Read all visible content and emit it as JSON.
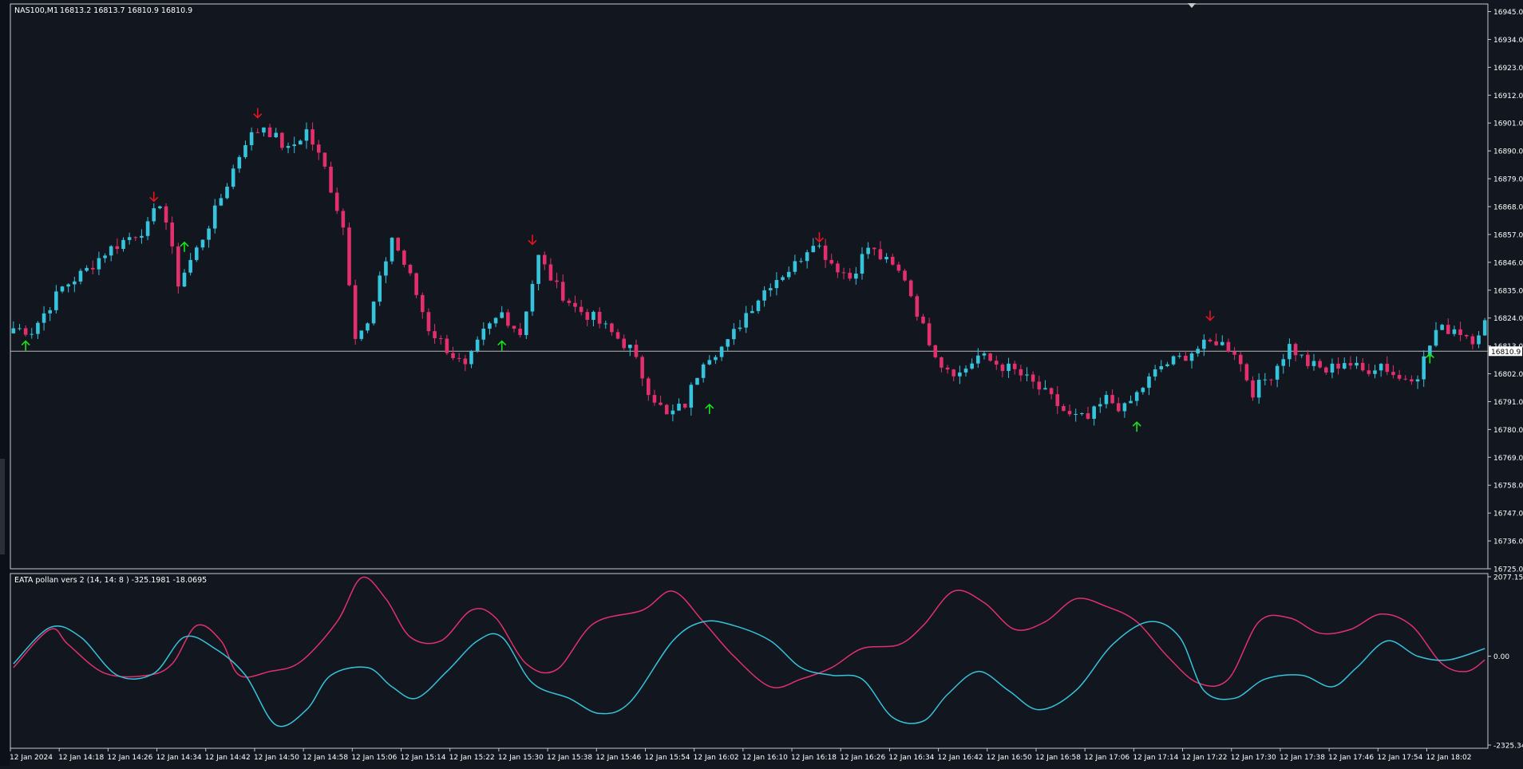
{
  "header": {
    "symbol": "NAS100,M1",
    "ohlc": "16813.2 16813.7 16810.9 16810.9"
  },
  "colors": {
    "background": "#11161f",
    "frame": "#c8c8c8",
    "bull": "#36c3dc",
    "bear": "#e3306d",
    "buy_arrow": "#18e418",
    "sell_arrow": "#e8141e",
    "bid_line": "#b8b8b8",
    "text": "#ffffff"
  },
  "indicator": {
    "label": "EATA pollan vers 2 (14, 14: 8 ) -325.1981 -18.0695",
    "ticks": [
      "2077.1513",
      "0.00",
      "-2325.3458"
    ]
  },
  "price_ticks": [
    "16945.0",
    "16934.0",
    "16923.0",
    "16912.0",
    "16901.0",
    "16890.0",
    "16879.0",
    "16868.0",
    "16857.0",
    "16846.0",
    "16835.0",
    "16824.0",
    "16813.0",
    "16802.0",
    "16791.0",
    "16780.0",
    "16769.0",
    "16758.0",
    "16747.0",
    "16736.0",
    "16725.0"
  ],
  "current_price": "16810.9",
  "time_labels": [
    "12 Jan 2024",
    "12 Jan 14:18",
    "12 Jan 14:26",
    "12 Jan 14:34",
    "12 Jan 14:42",
    "12 Jan 14:50",
    "12 Jan 14:58",
    "12 Jan 15:06",
    "12 Jan 15:14",
    "12 Jan 15:22",
    "12 Jan 15:30",
    "12 Jan 15:38",
    "12 Jan 15:46",
    "12 Jan 15:54",
    "12 Jan 16:02",
    "12 Jan 16:10",
    "12 Jan 16:18",
    "12 Jan 16:26",
    "12 Jan 16:34",
    "12 Jan 16:42",
    "12 Jan 16:50",
    "12 Jan 16:58",
    "12 Jan 17:06",
    "12 Jan 17:14",
    "12 Jan 17:22",
    "12 Jan 17:30",
    "12 Jan 17:38",
    "12 Jan 17:46",
    "12 Jan 17:54",
    "12 Jan 18:02"
  ],
  "chart_data": [
    {
      "type": "candlestick",
      "symbol": "NAS100",
      "timeframe": "M1",
      "ylim": [
        16725,
        16948
      ],
      "anchors": [
        [
          0,
          16820
        ],
        [
          3,
          16819
        ],
        [
          8,
          16836
        ],
        [
          12,
          16843
        ],
        [
          15,
          16850
        ],
        [
          19,
          16856
        ],
        [
          22,
          16860
        ],
        [
          24,
          16870
        ],
        [
          25,
          16862
        ],
        [
          27,
          16838
        ],
        [
          30,
          16851
        ],
        [
          33,
          16866
        ],
        [
          38,
          16894
        ],
        [
          41,
          16900
        ],
        [
          45,
          16890
        ],
        [
          48,
          16898
        ],
        [
          51,
          16883
        ],
        [
          54,
          16860
        ],
        [
          56,
          16818
        ],
        [
          58,
          16821
        ],
        [
          62,
          16856
        ],
        [
          65,
          16840
        ],
        [
          68,
          16820
        ],
        [
          71,
          16812
        ],
        [
          74,
          16804
        ],
        [
          77,
          16818
        ],
        [
          80,
          16826
        ],
        [
          83,
          16818
        ],
        [
          86,
          16848
        ],
        [
          89,
          16836
        ],
        [
          92,
          16828
        ],
        [
          95,
          16824
        ],
        [
          98,
          16818
        ],
        [
          101,
          16812
        ],
        [
          104,
          16796
        ],
        [
          107,
          16785
        ],
        [
          110,
          16790
        ],
        [
          113,
          16808
        ],
        [
          117,
          16814
        ],
        [
          120,
          16826
        ],
        [
          124,
          16838
        ],
        [
          128,
          16845
        ],
        [
          131,
          16855
        ],
        [
          134,
          16846
        ],
        [
          137,
          16840
        ],
        [
          140,
          16852
        ],
        [
          143,
          16846
        ],
        [
          146,
          16840
        ],
        [
          149,
          16820
        ],
        [
          152,
          16806
        ],
        [
          155,
          16802
        ],
        [
          158,
          16809
        ],
        [
          161,
          16806
        ],
        [
          164,
          16803
        ],
        [
          167,
          16798
        ],
        [
          170,
          16792
        ],
        [
          173,
          16785
        ],
        [
          176,
          16784
        ],
        [
          179,
          16792
        ],
        [
          182,
          16788
        ],
        [
          185,
          16797
        ],
        [
          188,
          16805
        ],
        [
          191,
          16808
        ],
        [
          194,
          16812
        ],
        [
          197,
          16815
        ],
        [
          200,
          16811
        ],
        [
          203,
          16795
        ],
        [
          206,
          16802
        ],
        [
          209,
          16813
        ],
        [
          212,
          16806
        ],
        [
          215,
          16803
        ],
        [
          218,
          16807
        ],
        [
          221,
          16803
        ],
        [
          224,
          16806
        ],
        [
          227,
          16800
        ],
        [
          230,
          16802
        ],
        [
          233,
          16819
        ],
        [
          236,
          16820
        ],
        [
          239,
          16816
        ],
        [
          241,
          16822
        ]
      ],
      "arrows": [
        {
          "bar": 2,
          "dir": "up",
          "price": 16813
        },
        {
          "bar": 23,
          "dir": "down",
          "price": 16872
        },
        {
          "bar": 28,
          "dir": "up",
          "price": 16852
        },
        {
          "bar": 40,
          "dir": "down",
          "price": 16905
        },
        {
          "bar": 80,
          "dir": "up",
          "price": 16813
        },
        {
          "bar": 85,
          "dir": "down",
          "price": 16855
        },
        {
          "bar": 114,
          "dir": "up",
          "price": 16788
        },
        {
          "bar": 132,
          "dir": "down",
          "price": 16856
        },
        {
          "bar": 184,
          "dir": "up",
          "price": 16781
        },
        {
          "bar": 196,
          "dir": "down",
          "price": 16825
        },
        {
          "bar": 232,
          "dir": "up",
          "price": 16808
        }
      ]
    },
    {
      "type": "line",
      "ylim": [
        -2325.3458,
        2077.1513
      ],
      "series": [
        {
          "color": "#e3306d",
          "points": [
            [
              0,
              -300
            ],
            [
              6,
              700
            ],
            [
              9,
              300
            ],
            [
              15,
              -450
            ],
            [
              22,
              -500
            ],
            [
              26,
              -200
            ],
            [
              30,
              800
            ],
            [
              34,
              400
            ],
            [
              37,
              -500
            ],
            [
              42,
              -400
            ],
            [
              47,
              -150
            ],
            [
              53,
              900
            ],
            [
              57,
              2050
            ],
            [
              61,
              1500
            ],
            [
              65,
              500
            ],
            [
              70,
              400
            ],
            [
              75,
              1200
            ],
            [
              79,
              1000
            ],
            [
              84,
              -200
            ],
            [
              89,
              -350
            ],
            [
              95,
              850
            ],
            [
              103,
              1200
            ],
            [
              108,
              1700
            ],
            [
              113,
              900
            ],
            [
              118,
              0
            ],
            [
              124,
              -800
            ],
            [
              129,
              -600
            ],
            [
              134,
              -300
            ],
            [
              139,
              200
            ],
            [
              145,
              300
            ],
            [
              149,
              800
            ],
            [
              154,
              1700
            ],
            [
              159,
              1400
            ],
            [
              164,
              700
            ],
            [
              169,
              900
            ],
            [
              174,
              1500
            ],
            [
              179,
              1300
            ],
            [
              184,
              900
            ],
            [
              189,
              0
            ],
            [
              194,
              -700
            ],
            [
              199,
              -600
            ],
            [
              204,
              900
            ],
            [
              209,
              1000
            ],
            [
              214,
              600
            ],
            [
              219,
              700
            ],
            [
              224,
              1100
            ],
            [
              229,
              800
            ],
            [
              234,
              -200
            ],
            [
              238,
              -400
            ],
            [
              241,
              -100
            ]
          ]
        },
        {
          "color": "#36c3dc",
          "points": [
            [
              0,
              -200
            ],
            [
              6,
              750
            ],
            [
              11,
              500
            ],
            [
              17,
              -500
            ],
            [
              23,
              -450
            ],
            [
              28,
              500
            ],
            [
              33,
              200
            ],
            [
              38,
              -500
            ],
            [
              43,
              -1800
            ],
            [
              48,
              -1400
            ],
            [
              52,
              -500
            ],
            [
              58,
              -300
            ],
            [
              62,
              -800
            ],
            [
              66,
              -1100
            ],
            [
              71,
              -400
            ],
            [
              76,
              400
            ],
            [
              80,
              500
            ],
            [
              85,
              -700
            ],
            [
              91,
              -1100
            ],
            [
              96,
              -1500
            ],
            [
              101,
              -1200
            ],
            [
              108,
              400
            ],
            [
              113,
              900
            ],
            [
              118,
              800
            ],
            [
              124,
              400
            ],
            [
              129,
              -300
            ],
            [
              134,
              -500
            ],
            [
              139,
              -600
            ],
            [
              144,
              -1600
            ],
            [
              149,
              -1700
            ],
            [
              153,
              -1000
            ],
            [
              158,
              -400
            ],
            [
              163,
              -900
            ],
            [
              168,
              -1400
            ],
            [
              174,
              -900
            ],
            [
              180,
              300
            ],
            [
              186,
              900
            ],
            [
              191,
              500
            ],
            [
              195,
              -900
            ],
            [
              200,
              -1100
            ],
            [
              205,
              -600
            ],
            [
              211,
              -500
            ],
            [
              216,
              -800
            ],
            [
              220,
              -300
            ],
            [
              225,
              400
            ],
            [
              230,
              0
            ],
            [
              235,
              -100
            ],
            [
              241,
              200
            ]
          ]
        }
      ]
    }
  ]
}
